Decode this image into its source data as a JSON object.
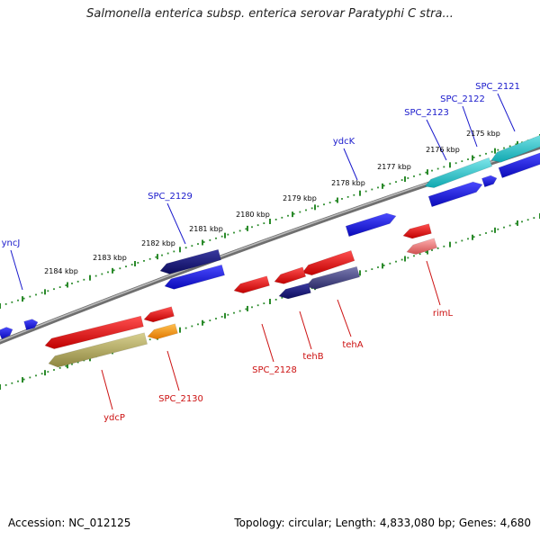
{
  "title": "Salmonella enterica subsp. enterica serovar Paratyphi C stra...",
  "footer": {
    "accession": "Accession: NC_012125",
    "summary": "Topology: circular; Length: 4,833,080 bp; Genes: 4,680"
  },
  "colors": {
    "backbone": "#888888",
    "tick": "#2a8a2a",
    "forward_label": "#1a1acc",
    "reverse_label": "#cc1111",
    "cyan": "#22c4cc",
    "blue": "#1a1ae6",
    "navy": "#1a1a80",
    "red": "#ee1111",
    "orange": "#ff9900",
    "olive": "#b8b060",
    "pink": "#f08080",
    "slate": "#4a4a8a"
  },
  "ticks": [
    {
      "label": "2175 kbp"
    },
    {
      "label": "2176 kbp"
    },
    {
      "label": "2177 kbp"
    },
    {
      "label": "2178 kbp"
    },
    {
      "label": "2179 kbp"
    },
    {
      "label": "2180 kbp"
    },
    {
      "label": "2181 kbp"
    },
    {
      "label": "2182 kbp"
    },
    {
      "label": "2183 kbp"
    },
    {
      "label": "2184 kbp"
    }
  ],
  "forward_labels": [
    {
      "name": "SPC_2121"
    },
    {
      "name": "SPC_2122"
    },
    {
      "name": "SPC_2123"
    },
    {
      "name": "ydcK"
    },
    {
      "name": "SPC_2129"
    },
    {
      "name": "yncJ"
    }
  ],
  "reverse_labels": [
    {
      "name": "rimL"
    },
    {
      "name": "tehA"
    },
    {
      "name": "tehB"
    },
    {
      "name": "SPC_2128"
    },
    {
      "name": "SPC_2130"
    },
    {
      "name": "ydcP"
    }
  ]
}
